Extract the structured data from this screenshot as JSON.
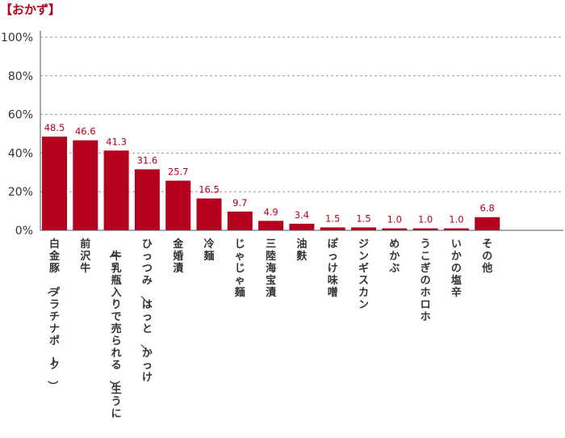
{
  "chart_data": {
    "type": "bar",
    "title": "【おかず】",
    "xlabel": "",
    "ylabel": "",
    "ylim": [
      0,
      100
    ],
    "yticks": [
      0,
      20,
      40,
      60,
      80,
      100
    ],
    "ytick_labels": [
      "0%",
      "20%",
      "40%",
      "60%",
      "80%",
      "100%"
    ],
    "grid": true,
    "categories": [
      "白金豚（プラチナポーク）",
      "前沢牛",
      "（牛乳瓶入りで売られる）生うに",
      "ひっつみ／はっと／かっけ",
      "金婚漬",
      "冷麺",
      "じゃじゃ麺",
      "三陸海宝漬",
      "油麩",
      "ぽっけ味噌",
      "ジンギスカン",
      "めかぶ",
      "うこぎのホロホ",
      "いかの塩辛",
      "その他"
    ],
    "values": [
      48.5,
      46.6,
      41.3,
      31.6,
      25.7,
      16.5,
      9.7,
      4.9,
      3.4,
      1.5,
      1.5,
      1.0,
      1.0,
      1.0,
      6.8
    ],
    "value_labels": [
      "48.5",
      "46.6",
      "41.3",
      "31.6",
      "25.7",
      "16.5",
      "9.7",
      "4.9",
      "3.4",
      "1.5",
      "1.5",
      "1.0",
      "1.0",
      "1.0",
      "6.8"
    ],
    "colors": {
      "bar": "#b5001e",
      "value_label": "#b5001e",
      "title": "#b5001e",
      "grid": "#999999",
      "axis": "#555555"
    }
  }
}
